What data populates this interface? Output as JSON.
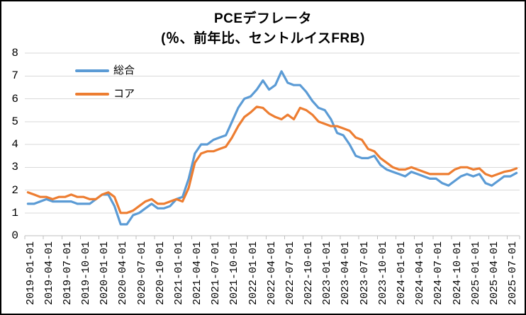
{
  "chart": {
    "title_line1": "PCEデフレータ",
    "title_line2": "(％、前年比、セントルイスFRB)"
  },
  "chart_data": {
    "type": "line",
    "title": "PCEデフレータ",
    "subtitle": "(％、前年比、セントルイスFRB)",
    "unit": "percent, year-over-year",
    "x_frequency": "monthly",
    "x_start": "2019-01",
    "x_end": "2025-08",
    "ylim": [
      0,
      8
    ],
    "y_ticks": [
      "0",
      "1",
      "2",
      "3",
      "4",
      "5",
      "6",
      "7",
      "8"
    ],
    "grid": true,
    "legend_position": "top-left-inside",
    "x_tick_labels": [
      "2019-01-01",
      "2019-04-01",
      "2019-07-01",
      "2019-10-01",
      "2020-01-01",
      "2020-04-01",
      "2020-07-01",
      "2020-10-01",
      "2021-01-01",
      "2021-04-01",
      "2021-07-01",
      "2021-10-01",
      "2022-01-01",
      "2022-04-01",
      "2022-07-01",
      "2022-10-01",
      "2023-01-01",
      "2023-04-01",
      "2023-07-01",
      "2023-10-01",
      "2024-01-01",
      "2024-04-01",
      "2024-07-01",
      "2024-10-01",
      "2025-01-01",
      "2025-04-01",
      "2025-07-01"
    ],
    "series": [
      {
        "name": "総合",
        "color": "#5B9BD5",
        "values": [
          1.4,
          1.4,
          1.5,
          1.6,
          1.5,
          1.5,
          1.5,
          1.5,
          1.4,
          1.4,
          1.4,
          1.6,
          1.8,
          1.8,
          1.3,
          0.5,
          0.5,
          0.9,
          1.0,
          1.2,
          1.4,
          1.2,
          1.2,
          1.3,
          1.6,
          1.7,
          2.5,
          3.6,
          4.0,
          4.0,
          4.2,
          4.3,
          4.4,
          5.0,
          5.6,
          6.0,
          6.1,
          6.4,
          6.8,
          6.4,
          6.6,
          7.2,
          6.7,
          6.6,
          6.6,
          6.3,
          5.9,
          5.6,
          5.5,
          5.1,
          4.5,
          4.4,
          4.0,
          3.5,
          3.4,
          3.4,
          3.5,
          3.1,
          2.9,
          2.8,
          2.7,
          2.6,
          2.8,
          2.7,
          2.6,
          2.5,
          2.5,
          2.3,
          2.2,
          2.4,
          2.6,
          2.7,
          2.6,
          2.7,
          2.3,
          2.2,
          2.4,
          2.6,
          2.6,
          2.75
        ]
      },
      {
        "name": "コア",
        "color": "#ED7D31",
        "values": [
          1.9,
          1.8,
          1.7,
          1.7,
          1.6,
          1.7,
          1.7,
          1.8,
          1.7,
          1.7,
          1.6,
          1.6,
          1.8,
          1.9,
          1.7,
          1.0,
          1.0,
          1.1,
          1.3,
          1.5,
          1.6,
          1.4,
          1.4,
          1.5,
          1.6,
          1.5,
          2.1,
          3.2,
          3.6,
          3.7,
          3.7,
          3.8,
          3.9,
          4.3,
          4.8,
          5.2,
          5.4,
          5.65,
          5.6,
          5.35,
          5.2,
          5.1,
          5.3,
          5.1,
          5.6,
          5.5,
          5.3,
          5.0,
          4.9,
          4.8,
          4.8,
          4.7,
          4.6,
          4.3,
          4.2,
          3.8,
          3.7,
          3.4,
          3.2,
          3.0,
          2.9,
          2.9,
          3.0,
          2.9,
          2.8,
          2.7,
          2.7,
          2.7,
          2.7,
          2.9,
          3.0,
          3.0,
          2.9,
          2.95,
          2.7,
          2.6,
          2.7,
          2.8,
          2.85,
          2.95
        ]
      }
    ],
    "style": {
      "gridline_color": "#D9D9D9",
      "axis_color": "#BFBFBF",
      "border_color": "#000000",
      "background": "#FFFFFF"
    }
  }
}
